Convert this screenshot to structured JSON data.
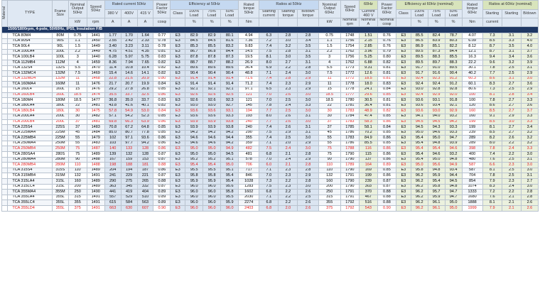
{
  "header": {
    "material_label": "Material",
    "type_label": "TYPE",
    "frame_size_label": "Frame Size",
    "nominal_output_50": "Nominal Output 50Hz",
    "speed_50": "Speed 50Hz",
    "rated_current_50": "Rated current 50Hz",
    "v380": "380 V",
    "v400": "400V",
    "v415": "415 V",
    "power_factor_50": "Power Factor 50Hz",
    "efficiency_50": "Efficiency at 50Hz",
    "class": "Class",
    "load100": "100% Load",
    "load75": "75% Load",
    "load50": "50% Load",
    "rated_torque_50": "Rated torque 50Hz",
    "ratios_50": "Ratios at 50Hz",
    "starting_current": "Starting current",
    "starting_torque": "Starting torque",
    "bdown_torque": "B/down torque",
    "nominal_output_60": "Nominal Output 60Hz",
    "speed_60": "Speed 60Hz",
    "hz60": "60Hz",
    "current_460": "Current 460 V",
    "power_factor_60": "Power Factor 60Hz",
    "efficiency_60": "Efficiency at 60Hz (nominal)",
    "rated_torque_60": "Rated torque 60Hz",
    "ratios_60": "Ratios at 60Hz (nominal)",
    "starting": "Starting",
    "starting_current_s": "current",
    "starting_s": "Starting",
    "bdown": "B/down",
    "u_kw": "kW",
    "u_rpm": "rpm",
    "u_a": "A",
    "u_cos": "cosφ",
    "u_pct": "%",
    "u_nm": "Nm",
    "u_nominal": "Nominal",
    "u_nominal_a": "Nominal A",
    "u_nominal_rpm": "Nominal rpm",
    "u_nominal_cos": "Nominal cosφ"
  },
  "band_label": "1500/1800rpm, 4-pole, 50/60Hz, IP55, Insulation F/B",
  "rows": [
    {
      "r": 0,
      "c": [
        "TCA 80M4",
        "80M",
        "0.75",
        "1441",
        "1.77",
        "1.70",
        "1.64",
        "0.77",
        "E3",
        "82.9",
        "82.9",
        "80.1",
        "4.94",
        "6.3",
        "2.8",
        "2.8",
        "0.75",
        "1748",
        "1.51",
        "0.76",
        "E3",
        "85.5",
        "82.4",
        "78.7",
        "4.07",
        "7.3",
        "3.1",
        "3.2"
      ]
    },
    {
      "r": 0,
      "c": [
        "TCA 90S4",
        "90S",
        "1.1",
        "1450",
        "2.55",
        "2.42",
        "2.33",
        "0.78",
        "E3",
        "84.5",
        "84.5",
        "81.6",
        "7.36",
        "7.2",
        "3.0",
        "3.4",
        "1.1",
        "1756",
        "2.15",
        "0.76",
        "E3",
        "86.5",
        "83.9",
        "80.3",
        "6.09",
        "8.5",
        "3.3",
        "4.0"
      ]
    },
    {
      "r": 0,
      "c": [
        "TCA 90L4",
        "90L",
        "1.5",
        "1449",
        "3.40",
        "3.23",
        "3.11",
        "0.78",
        "E3",
        "85.3",
        "85.5",
        "83.2",
        "9.83",
        "7.4",
        "3.2",
        "3.5",
        "1.5",
        "1754",
        "2.85",
        "0.76",
        "E3",
        "86.9",
        "85.1",
        "82.2",
        "8.12",
        "8.7",
        "3.5",
        "4.0"
      ]
    },
    {
      "r": 0,
      "c": [
        "TCA 100LA4",
        "100L",
        "2.2",
        "1449",
        "4.75",
        "4.51",
        "4.35",
        "0.81",
        "E3",
        "86.7",
        "86.8",
        "84.4",
        "14.5",
        "7.5",
        "2.8",
        "3.1",
        "2.2",
        "1762",
        "3.96",
        "0.79",
        "E3",
        "89.5",
        "87.3",
        "84.4",
        "12.1",
        "8.7",
        "3.1",
        "3.7"
      ]
    },
    {
      "r": 0,
      "c": [
        "TCA 100LB4",
        "100L",
        "3",
        "1440",
        "6.28",
        "5.97",
        "5.75",
        "0.83",
        "E3",
        "87.8",
        "87.8",
        "87.3",
        "19.5",
        "8.1",
        "3.0",
        "3.5",
        "3",
        "1756",
        "5.25",
        "0.80",
        "E3",
        "89.5",
        "88.3",
        "85.5",
        "16.3",
        "9.4",
        "3.4",
        "3.6"
      ]
    },
    {
      "r": 0,
      "c": [
        "TCA 112MB4",
        "112M",
        "4",
        "1459",
        "8.36",
        "7.94",
        "7.65",
        "0.82",
        "E3",
        "88.7",
        "88.7",
        "88.2",
        "26.9",
        "8.0",
        "2.7",
        "3.1",
        "4",
        "1762",
        "6.88",
        "0.82",
        "E3",
        "89.5",
        "89.7",
        "88.3",
        "22.2",
        "9.6",
        "3.2",
        "3.9"
      ]
    },
    {
      "r": 0,
      "c": [
        "TCA 132S4",
        "132S",
        "5.5",
        "1470",
        "11.4",
        "10.8",
        "10.4",
        "0.82",
        "E3",
        "89.6",
        "89.6",
        "89.6",
        "36.4",
        "6.9",
        "2.2",
        "2.8",
        "5.5",
        "1773",
        "9.31",
        "0.81",
        "E3",
        "91.7",
        "91.0",
        "89.5",
        "30.1",
        "7.8",
        "2.5",
        "3.1"
      ]
    },
    {
      "r": 0,
      "c": [
        "TCA 132MC4",
        "132M",
        "7.5",
        "1469",
        "15.4",
        "14.6",
        "14.1",
        "0.82",
        "E3",
        "90.4",
        "90.4",
        "90.4",
        "48.8",
        "7.1",
        "2.4",
        "3.0",
        "7.5",
        "1772",
        "12.6",
        "0.81",
        "E3",
        "91.7",
        "91.6",
        "90.4",
        "40.2",
        "7.7",
        "2.5",
        "2.9"
      ]
    },
    {
      "r": 1,
      "c": [
        "TCA 132MD4",
        "132M",
        "11",
        "1468",
        "22.8",
        "21.6",
        "20.9",
        "0.80",
        "E3",
        "91.4",
        "91.4",
        "91.4",
        "71.6",
        "7.4",
        "2.8",
        "2.9",
        "11",
        "1772",
        "18.5",
        "0.81",
        "E3",
        "92.4",
        "92.3",
        "91.2",
        "60.3",
        "8.6",
        "3.1",
        "3.0"
      ]
    },
    {
      "r": 0,
      "c": [
        "TCA 160MA4",
        "160M",
        "11",
        "1476",
        "21.7",
        "20.7",
        "19.9",
        "0.84",
        "E3",
        "91.4",
        "91.4",
        "91.4",
        "71.2",
        "7.4",
        "2.3",
        "2.9",
        "11",
        "1778",
        "18.0",
        "0.83",
        "E3",
        "92.4",
        "92.4",
        "91.2",
        "60.1",
        "8.3",
        "2.7",
        "3.6"
      ]
    },
    {
      "r": 0,
      "c": [
        "TCA 160L4",
        "160L",
        "15",
        "1476",
        "29.2",
        "27.8",
        "26.8",
        "0.85",
        "E3",
        "92.1",
        "92.1",
        "92.1",
        "97.1",
        "6.5",
        "2.3",
        "2.9",
        "15",
        "1778",
        "24.1",
        "0.84",
        "E3",
        "93.0",
        "92.8",
        "92.8",
        "80.6",
        "7.3",
        "2.5",
        "2.9"
      ]
    },
    {
      "r": 1,
      "c": [
        "TCA 160LB4",
        "160L",
        "18.5",
        "1474",
        "35.5",
        "33.7",
        "32.5",
        "0.86",
        "E3",
        "92.6",
        "92.6",
        "92.5",
        "121",
        "7.0",
        "2.6",
        "3.0",
        "18.5",
        "1777",
        "29.6",
        "0.85",
        "E3",
        "92.4",
        "92.9",
        "92.0",
        "100",
        "8.1",
        "2.8",
        "3.4"
      ]
    },
    {
      "r": 0,
      "c": [
        "TCA 180M4",
        "180M",
        "18.5",
        "1477",
        "36.8",
        "35.0",
        "33.7",
        "0.83",
        "E3",
        "92.6",
        "92.6",
        "92.3",
        "121",
        "7.0",
        "2.5",
        "3.0",
        "18.5",
        "1780",
        "30.5",
        "0.81",
        "E3",
        "93.6",
        "93.1",
        "91.8",
        "100",
        "7.8",
        "2.7",
        "3.3"
      ]
    },
    {
      "r": 0,
      "c": [
        "TCA 180LA4",
        "180L",
        "22",
        "1481",
        "43.8",
        "41.6",
        "40.1",
        "0.82",
        "E3",
        "93.0",
        "93.0",
        "92.7",
        "145",
        "7.8",
        "2.4",
        "3.3",
        "22",
        "1781",
        "36.4",
        "0.81",
        "E3",
        "93.6",
        "93.4",
        "92.1",
        "120",
        "8.6",
        "2.7",
        "3.6"
      ]
    },
    {
      "r": 1,
      "c": [
        "TCA 180LB4",
        "180L",
        "30",
        "1475",
        "57.8",
        "54.9",
        "53.0",
        "0.84",
        "E3",
        "93.6",
        "93.6",
        "93.1",
        "194",
        "7.7",
        "2.5",
        "3.0",
        "30",
        "1783",
        "48.9",
        "0.82",
        "E3",
        "93.6",
        "93.0",
        "92.9",
        "160",
        "8.5",
        "2.7",
        "3.7"
      ]
    },
    {
      "r": 0,
      "c": [
        "TCA 200LA4",
        "200L",
        "30",
        "1482",
        "57.1",
        "54.2",
        "52.3",
        "0.85",
        "E3",
        "93.6",
        "93.6",
        "93.3",
        "193",
        "8.0",
        "2.6",
        "3.1",
        "30",
        "1784",
        "47.4",
        "0.85",
        "E3",
        "94.1",
        "94.0",
        "93.2",
        "160",
        "9.1",
        "2.9",
        "3.3"
      ]
    },
    {
      "r": 1,
      "c": [
        "TCA 200LB4",
        "200L",
        "37",
        "1481",
        "69.8",
        "66.3",
        "63.9",
        "0.86",
        "E3",
        "93.9",
        "93.9",
        "93.8",
        "240",
        "7.7",
        "2.6",
        "3.0",
        "37",
        "1783",
        "58.3",
        "0.86",
        "E3",
        "94.5",
        "94.5",
        "94.2",
        "199",
        "8.5",
        "3.0",
        "3.3"
      ]
    },
    {
      "r": 0,
      "c": [
        "TCA 225S4",
        "225S",
        "37",
        "1483",
        "70.8",
        "67.2",
        "64.8",
        "0.85",
        "E3",
        "93.9",
        "93.9",
        "93.8",
        "240",
        "7.4",
        "2.6",
        "3.1",
        "37",
        "1785",
        "58.1",
        "0.84",
        "E3",
        "94.5",
        "94.3",
        "93.3",
        "199",
        "8.1",
        "2.7",
        "3.4"
      ]
    },
    {
      "r": 0,
      "c": [
        "TCA 225MA4",
        "225M",
        "45",
        "1484",
        "85.0",
        "80.7",
        "77.8",
        "0.85",
        "E3",
        "94.2",
        "94.2",
        "94.2",
        "290",
        "7.5",
        "2.9",
        "3.1",
        "45",
        "1786",
        "70.2",
        "0.85",
        "E3",
        "95.0",
        "94.6",
        "93.3",
        "239",
        "8.5",
        "2.7",
        "3.2"
      ]
    },
    {
      "r": 0,
      "c": [
        "TCA 225MB4",
        "225M",
        "55",
        "1479",
        "102",
        "97.1",
        "93.6",
        "0.86",
        "E3",
        "94.6",
        "94.6",
        "94.4",
        "355",
        "7.4",
        "2.5",
        "3.0",
        "55",
        "1783",
        "84.9",
        "0.86",
        "E3",
        "95.4",
        "95.0",
        "94.7",
        "289",
        "8.2",
        "2.6",
        "3.2"
      ]
    },
    {
      "r": 0,
      "c": [
        "TCA 250MA4",
        "250M",
        "55",
        "1483",
        "103",
        "97.7",
        "94.2",
        "0.86",
        "E3",
        "94.6",
        "94.6",
        "94.2",
        "359",
        "7.1",
        "2.0",
        "2.9",
        "55",
        "1786",
        "85.5",
        "0.85",
        "E3",
        "95.4",
        "94.8",
        "93.9",
        "289",
        "8.0",
        "2.2",
        "3.2"
      ]
    },
    {
      "r": 1,
      "c": [
        "TCA 250MB4",
        "250M",
        "75",
        "1487",
        "140",
        "133",
        "128",
        "0.86",
        "E3",
        "95.0",
        "95.0",
        "94.9",
        "482",
        "7.5",
        "2.4",
        "3.0",
        "75",
        "1788",
        "116",
        "0.86",
        "E3",
        "95.4",
        "95.4",
        "94.6",
        "398",
        "7.8",
        "2.4",
        "3.3"
      ]
    },
    {
      "r": 0,
      "c": [
        "TCA 280SA4",
        "280S",
        "75",
        "1489",
        "139",
        "132",
        "128",
        "0.87",
        "E3",
        "95.0",
        "95.0",
        "94.5",
        "481",
        "6.8",
        "2.1",
        "2.8",
        "75",
        "1790",
        "115",
        "0.86",
        "E3",
        "95.4",
        "94.6",
        "93.2",
        "400",
        "7.4",
        "2.2",
        "3.0"
      ]
    },
    {
      "r": 0,
      "c": [
        "TCA 280MA4",
        "280M",
        "90",
        "1488",
        "167",
        "159",
        "153",
        "0.87",
        "E3",
        "95.2",
        "95.2",
        "95.1",
        "578",
        "7.0",
        "2.4",
        "2.9",
        "90",
        "1790",
        "137",
        "0.86",
        "E3",
        "95.4",
        "95.0",
        "94.8",
        "480",
        "7.6",
        "2.5",
        "3.1"
      ]
    },
    {
      "r": 1,
      "c": [
        "TCA 280MB4",
        "280M",
        "110",
        "1488",
        "198",
        "188",
        "181",
        "0.88",
        "E3",
        "95.4",
        "95.4",
        "95.0",
        "706",
        "6.0",
        "2.1",
        "2.8",
        "110",
        "1789",
        "164",
        "0.89",
        "E3",
        "95.0",
        "95.6",
        "94.9",
        "587",
        "6.6",
        "2.3",
        "3.0"
      ]
    },
    {
      "r": 0,
      "c": [
        "TCA 315S4",
        "315S",
        "110",
        "1489",
        "204",
        "194",
        "187",
        "0.86",
        "E3",
        "95.5",
        "95.5",
        "95.1",
        "717",
        "7.1",
        "2.3",
        "2.8",
        "110",
        "1790",
        "169",
        "0.85",
        "E3",
        "95.8",
        "94.8",
        "93.4",
        "587",
        "8.1",
        "2.5",
        "3.0"
      ]
    },
    {
      "r": 0,
      "c": [
        "TCA 315MB4",
        "315M",
        "132",
        "1491",
        "241",
        "229",
        "221",
        "0.87",
        "E3",
        "95.8",
        "95.8",
        "95.4",
        "846",
        "7.0",
        "2.3",
        "2.9",
        "132",
        "1791",
        "199",
        "0.86",
        "E3",
        "96.2",
        "95.9",
        "94.4",
        "704",
        "7.8",
        "2.5",
        "3.1"
      ]
    },
    {
      "r": 0,
      "c": [
        "TCA 315LA4",
        "315L",
        "160",
        "1489",
        "290",
        "275",
        "265",
        "0.88",
        "E3",
        "95.9",
        "95.9",
        "95.4",
        "1028",
        "7.3",
        "2.2",
        "2.8",
        "160",
        "1790",
        "239",
        "0.87",
        "E3",
        "96.2",
        "95.4",
        "94.5",
        "854",
        "7.9",
        "2.3",
        "2.7"
      ]
    },
    {
      "r": 0,
      "c": [
        "TCA 315LC4",
        "315L",
        "200",
        "1489",
        "363",
        "345",
        "332",
        "0.87",
        "E3",
        "96.0",
        "96.0",
        "95.6",
        "1283",
        "7.5",
        "2.3",
        "3.0",
        "200",
        "1790",
        "303",
        "0.87",
        "E3",
        "96.2",
        "95.8",
        "94.8",
        "1074",
        "8.3",
        "2.4",
        "3.0"
      ]
    },
    {
      "r": 0,
      "c": [
        "TCA 355MA4",
        "355M",
        "250",
        "1490",
        "441",
        "419",
        "404",
        "0.89",
        "E3",
        "96.0",
        "96.0",
        "95.8",
        "1602",
        "6.8",
        "2.2",
        "2.6",
        "250",
        "1791",
        "370",
        "0.88",
        "E3",
        "96.2",
        "95.7",
        "94.7",
        "1333",
        "7.2",
        "2.2",
        "2.8"
      ]
    },
    {
      "r": 0,
      "c": [
        "TCA 355LA4",
        "355L",
        "315",
        "1491",
        "557",
        "529",
        "510",
        "0.89",
        "E3",
        "96.0",
        "96.0",
        "95.5",
        "2030",
        "7.1",
        "2.2",
        "2.5",
        "315",
        "1791",
        "467",
        "0.88",
        "E3",
        "96.2",
        "95.9",
        "94.7",
        "1680",
        "7.6",
        "2.1",
        "2.8"
      ]
    },
    {
      "r": 0,
      "c": [
        "TCA 355LC4",
        "355L",
        "355",
        "1491",
        "615",
        "584",
        "563",
        "0.89",
        "E3",
        "96.0",
        "96.0",
        "95.9",
        "2274",
        "6.8",
        "2.2",
        "2.6",
        "355",
        "1792",
        "516",
        "0.88",
        "E3",
        "96.2",
        "96.1",
        "95.0",
        "1888",
        "8.1",
        "2.1",
        "2.6"
      ]
    },
    {
      "r": 1,
      "c": [
        "TCA 355LD4",
        "355L",
        "375",
        "1491",
        "663",
        "630",
        "607",
        "0.90",
        "E3",
        "96.0",
        "96.0",
        "96.0",
        "2403",
        "6.8",
        "2.0",
        "2.6",
        "375",
        "1792",
        "543",
        "0.90",
        "E3",
        "96.2",
        "96.1",
        "95.0",
        "1999",
        "7.9",
        "2.1",
        "2.6"
      ]
    }
  ]
}
